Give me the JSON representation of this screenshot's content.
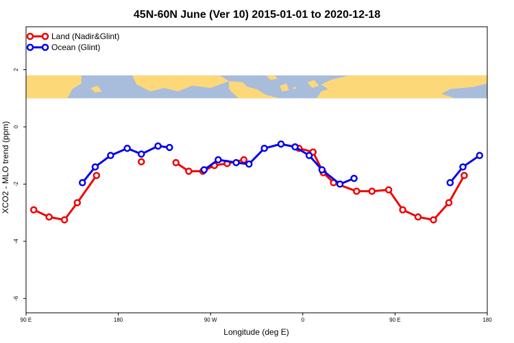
{
  "chart_data": {
    "type": "line",
    "title": "45N-60N June (Ver 10)   2015-01-01 to 2020-12-18",
    "xlabel": "Longitude (deg E)",
    "ylabel": "XCO2 - MLO trend (ppm)",
    "xlim": [
      0,
      360
    ],
    "ylim": [
      -6.5,
      3.5
    ],
    "x_ticks": [
      {
        "value": 0,
        "label": "90 E"
      },
      {
        "value": 72,
        "label": "180"
      },
      {
        "value": 144,
        "label": "90 W"
      },
      {
        "value": 216,
        "label": "0"
      },
      {
        "value": 288,
        "label": "90 E"
      },
      {
        "value": 360,
        "label": "180"
      }
    ],
    "y_ticks": [
      {
        "value": 2,
        "label": "2"
      },
      {
        "value": 0,
        "label": "0"
      },
      {
        "value": -2,
        "label": "-2"
      },
      {
        "value": -4,
        "label": "-4"
      },
      {
        "value": -6,
        "label": "-6"
      }
    ],
    "legend_position": "top-left",
    "map_band": {
      "ymin": 1.0,
      "ymax": 1.8,
      "ocean_color": "#a8bcdc",
      "land_color": "#fdd878"
    },
    "series": [
      {
        "name": "Land (Nadir&Glint)",
        "color": "#ee0000",
        "segments": [
          {
            "x": [
              6,
              18,
              30,
              40,
              55
            ],
            "y": [
              -2.9,
              -3.15,
              -3.25,
              -2.65,
              -1.7
            ]
          },
          {
            "x": [
              90
            ],
            "y": [
              -1.22
            ]
          },
          {
            "x": [
              117,
              127,
              138,
              147,
              157,
              170
            ],
            "y": [
              -1.25,
              -1.55,
              -1.55,
              -1.35,
              -1.28,
              -1.15
            ]
          },
          {
            "x": [
              213,
              224,
              232,
              240,
              258,
              270,
              283,
              294,
              306,
              318,
              330,
              342
            ],
            "y": [
              -0.75,
              -0.88,
              -1.6,
              -1.95,
              -2.25,
              -2.25,
              -2.2,
              -2.9,
              -3.15,
              -3.25,
              -2.65,
              -1.7
            ]
          }
        ]
      },
      {
        "name": "Ocean (Glint)",
        "color": "#0000ee",
        "segments": [
          {
            "x": [
              44,
              54,
              66,
              79,
              90,
              103,
              112
            ],
            "y": [
              -1.95,
              -1.4,
              -1.0,
              -0.75,
              -0.95,
              -0.67,
              -0.72
            ]
          },
          {
            "x": [
              139,
              150,
              164,
              174,
              186,
              199,
              210,
              221,
              231,
              245,
              256
            ],
            "y": [
              -1.5,
              -1.15,
              -1.25,
              -1.3,
              -0.75,
              -0.6,
              -0.7,
              -1.0,
              -1.5,
              -2.0,
              -1.8
            ]
          },
          {
            "x": [
              331,
              341,
              354
            ],
            "y": [
              -1.95,
              -1.4,
              -1.0
            ]
          }
        ]
      }
    ]
  }
}
